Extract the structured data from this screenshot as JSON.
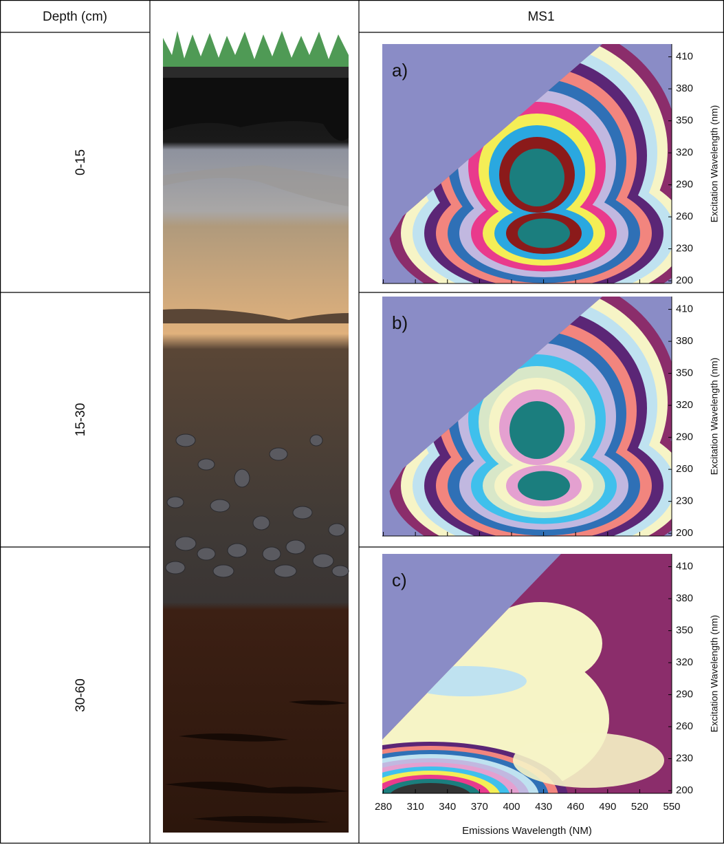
{
  "header": {
    "depth": "Depth (cm)",
    "sample": "MS1"
  },
  "rows": [
    {
      "depth": "0-15",
      "panel": "a)"
    },
    {
      "depth": "15-30",
      "panel": "b)"
    },
    {
      "depth": "30-60",
      "panel": "c)"
    }
  ],
  "axes": {
    "x": {
      "label": "Emissions Wavelength (NM)",
      "lim": [
        279,
        550
      ],
      "ticks": [
        280,
        310,
        340,
        370,
        400,
        430,
        460,
        490,
        520,
        550
      ]
    },
    "y": {
      "label": "Excitation Wavelength (nm)",
      "lim": [
        197.5,
        422
      ],
      "ticks": [
        200,
        230,
        260,
        290,
        320,
        350,
        380,
        410
      ]
    }
  }
}
